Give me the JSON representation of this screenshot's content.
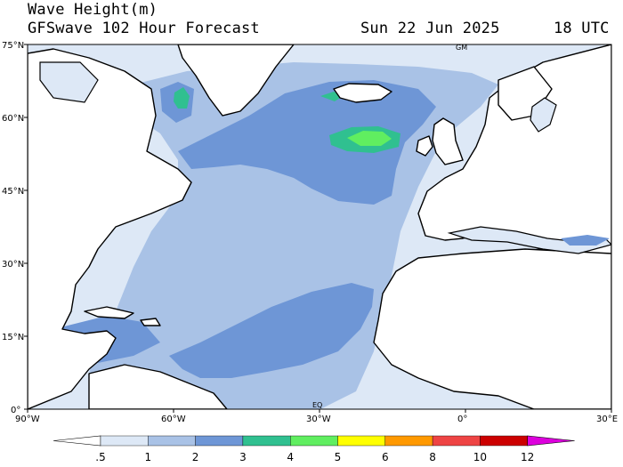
{
  "header": {
    "title": "Wave Height(m)",
    "model": "GFSwave 102 Hour Forecast",
    "date": "Sun 22 Jun 2025",
    "hour": "18 UTC"
  },
  "map": {
    "lat_labels": [
      "75°N",
      "60°N",
      "45°N",
      "30°N",
      "15°N",
      "0°"
    ],
    "lon_labels": [
      "90°W",
      "60°W",
      "30°W",
      "0°",
      "30°E"
    ],
    "corner_labels": [
      "GM",
      "EQ"
    ],
    "extent": {
      "lon": [
        -90,
        30
      ],
      "lat": [
        0,
        75
      ]
    }
  },
  "colorbar": {
    "labels": [
      ".5",
      "1",
      "2",
      "3",
      "4",
      "5",
      "6",
      "8",
      "10",
      "12"
    ],
    "colors": [
      "#ffffff",
      "#dde8f6",
      "#a9c2e6",
      "#6e96d6",
      "#30c090",
      "#60ee60",
      "#ffff00",
      "#ff9900",
      "#ee4444",
      "#cc0000",
      "#dd00dd"
    ]
  }
}
